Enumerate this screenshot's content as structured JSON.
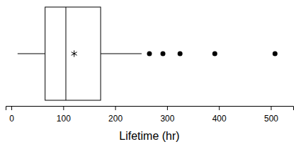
{
  "chart_data": {
    "type": "box",
    "orientation": "horizontal",
    "x_label": "Lifetime (hr)",
    "color": "#000000",
    "boxes": [
      {
        "whisker_low": 12,
        "q1": 65,
        "median": 105,
        "q3": 172,
        "whisker_high": 251,
        "mean": 121,
        "outliers": [
          266,
          292,
          325,
          392,
          508
        ]
      }
    ],
    "xlim": [
      -11,
      543
    ],
    "xticks": [
      0,
      100,
      200,
      300,
      400,
      500
    ]
  }
}
